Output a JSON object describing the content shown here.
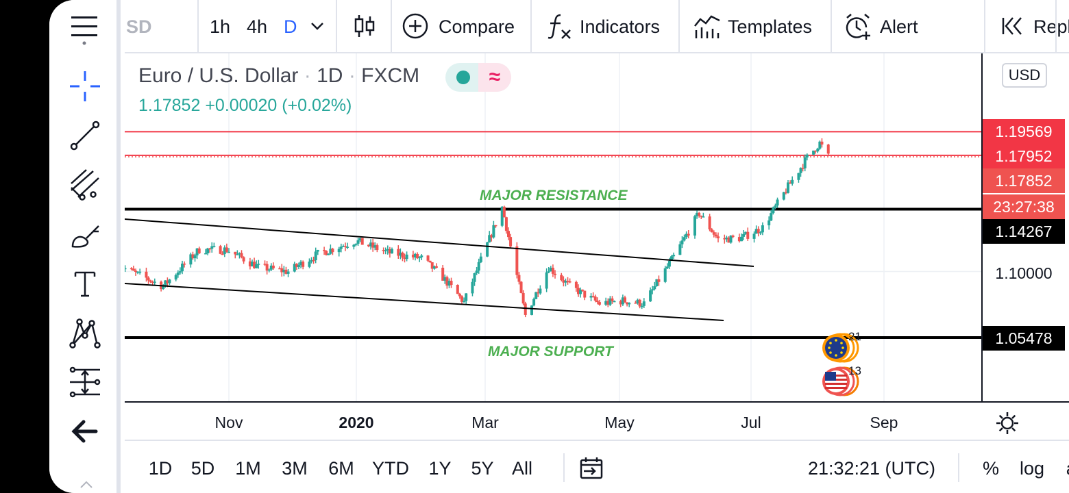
{
  "toolbar": {
    "symbol_fragment": "SD",
    "intervals": [
      "1h",
      "4h",
      "D"
    ],
    "active_interval": "D",
    "compare_label": "Compare",
    "indicators_label": "Indicators",
    "templates_label": "Templates",
    "alert_label": "Alert",
    "replay_label": "Replay"
  },
  "legend": {
    "symbol": "Euro / U.S. Dollar",
    "interval": "1D",
    "exchange": "FXCM",
    "separator": "·",
    "last_price": "1.17852",
    "change": "+0.00020 (+0.02%)",
    "wave_glyph": "≈"
  },
  "annotations": {
    "resistance": "MAJOR RESISTANCE",
    "support": "MAJOR SUPPORT"
  },
  "price_scale": {
    "currency": "USD",
    "alert_high": "1.19569",
    "alert_low": "1.17952",
    "current_price": "1.17852",
    "countdown": "23:27:38",
    "resistance_level": "1.14267",
    "grid_price": "1.10000",
    "support_level": "1.05478"
  },
  "events": {
    "eu_count": "21",
    "us_count": "13"
  },
  "time_axis": {
    "ticks": [
      "Nov",
      "2020",
      "Mar",
      "May",
      "Jul",
      "Sep"
    ]
  },
  "bottom_bar": {
    "ranges": [
      "1D",
      "5D",
      "1M",
      "3M",
      "6M",
      "YTD",
      "1Y",
      "5Y",
      "All"
    ],
    "clock": "21:32:21 (UTC)",
    "percent_label": "%",
    "log_label": "log",
    "auto_label": "auto"
  },
  "colors": {
    "up": "#26a69a",
    "down": "#ef5350",
    "alert": "#f23645",
    "accent": "#2962ff",
    "annotation": "#4caf50"
  },
  "chart_data": {
    "type": "candlestick",
    "title": "Euro / U.S. Dollar · 1D · FXCM",
    "x_ticks": [
      "Nov",
      "2020",
      "Mar",
      "May",
      "Jul",
      "Sep"
    ],
    "price_labels": [
      1.19569,
      1.17952,
      1.17852,
      1.14267,
      1.1,
      1.05478
    ],
    "horizontal_lines": [
      {
        "name": "alert-1",
        "price": 1.19569,
        "color": "#f23645"
      },
      {
        "name": "alert-2",
        "price": 1.17952,
        "color": "#f23645"
      },
      {
        "name": "major-resistance",
        "price": 1.14267,
        "color": "#000000"
      },
      {
        "name": "major-support",
        "price": 1.05478,
        "color": "#000000"
      }
    ],
    "close_path": [
      [
        "2019-09-10",
        1.104
      ],
      [
        "2019-09-25",
        1.094
      ],
      [
        "2019-10-01",
        1.09
      ],
      [
        "2019-10-18",
        1.115
      ],
      [
        "2019-10-31",
        1.115
      ],
      [
        "2019-11-15",
        1.103
      ],
      [
        "2019-11-29",
        1.1
      ],
      [
        "2019-12-13",
        1.112
      ],
      [
        "2019-12-31",
        1.121
      ],
      [
        "2020-01-15",
        1.113
      ],
      [
        "2020-01-31",
        1.109
      ],
      [
        "2020-02-10",
        1.096
      ],
      [
        "2020-02-20",
        1.079
      ],
      [
        "2020-03-01",
        1.115
      ],
      [
        "2020-03-09",
        1.144
      ],
      [
        "2020-03-20",
        1.07
      ],
      [
        "2020-03-31",
        1.103
      ],
      [
        "2020-04-10",
        1.09
      ],
      [
        "2020-04-24",
        1.078
      ],
      [
        "2020-05-05",
        1.08
      ],
      [
        "2020-05-15",
        1.078
      ],
      [
        "2020-05-29",
        1.11
      ],
      [
        "2020-06-10",
        1.14
      ],
      [
        "2020-06-19",
        1.122
      ],
      [
        "2020-06-30",
        1.123
      ],
      [
        "2020-07-10",
        1.13
      ],
      [
        "2020-07-22",
        1.158
      ],
      [
        "2020-07-31",
        1.178
      ],
      [
        "2020-08-06",
        1.188
      ],
      [
        "2020-08-10",
        1.1785
      ]
    ],
    "ylim": [
      1.05,
      1.2
    ],
    "grid": true
  }
}
